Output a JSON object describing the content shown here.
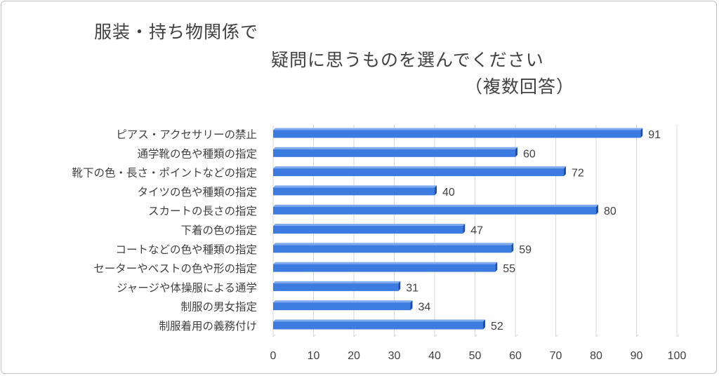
{
  "title": {
    "line1": "服装・持ち物関係で",
    "line2": "疑問に思うものを選んでください",
    "line3": "（複数回答）"
  },
  "colors": {
    "bar": "#3c7be0",
    "bar_side": "#1f4fa8",
    "bar_top": "#7fa9ee",
    "grid": "#d9d9d9",
    "text": "#404040"
  },
  "chart_data": {
    "type": "bar",
    "orientation": "horizontal",
    "title": "服装・持ち物関係で疑問に思うものを選んでください（複数回答）",
    "categories": [
      "ピアス・アクセサリーの禁止",
      "通学靴の色や種類の指定",
      "靴下の色・長さ・ポイントなどの指定",
      "タイツの色や種類の指定",
      "スカートの長さの指定",
      "下着の色の指定",
      "コートなどの色や種類の指定",
      "セーターやベストの色や形の指定",
      "ジャージや体操服による通学",
      "制服の男女指定",
      "制服着用の義務付け"
    ],
    "values": [
      91,
      60,
      72,
      40,
      80,
      47,
      59,
      55,
      31,
      34,
      52
    ],
    "xlim": [
      0,
      100
    ],
    "xticks": [
      0,
      10,
      20,
      30,
      40,
      50,
      60,
      70,
      80,
      90,
      100
    ],
    "grid": "vertical",
    "data_labels": true
  }
}
